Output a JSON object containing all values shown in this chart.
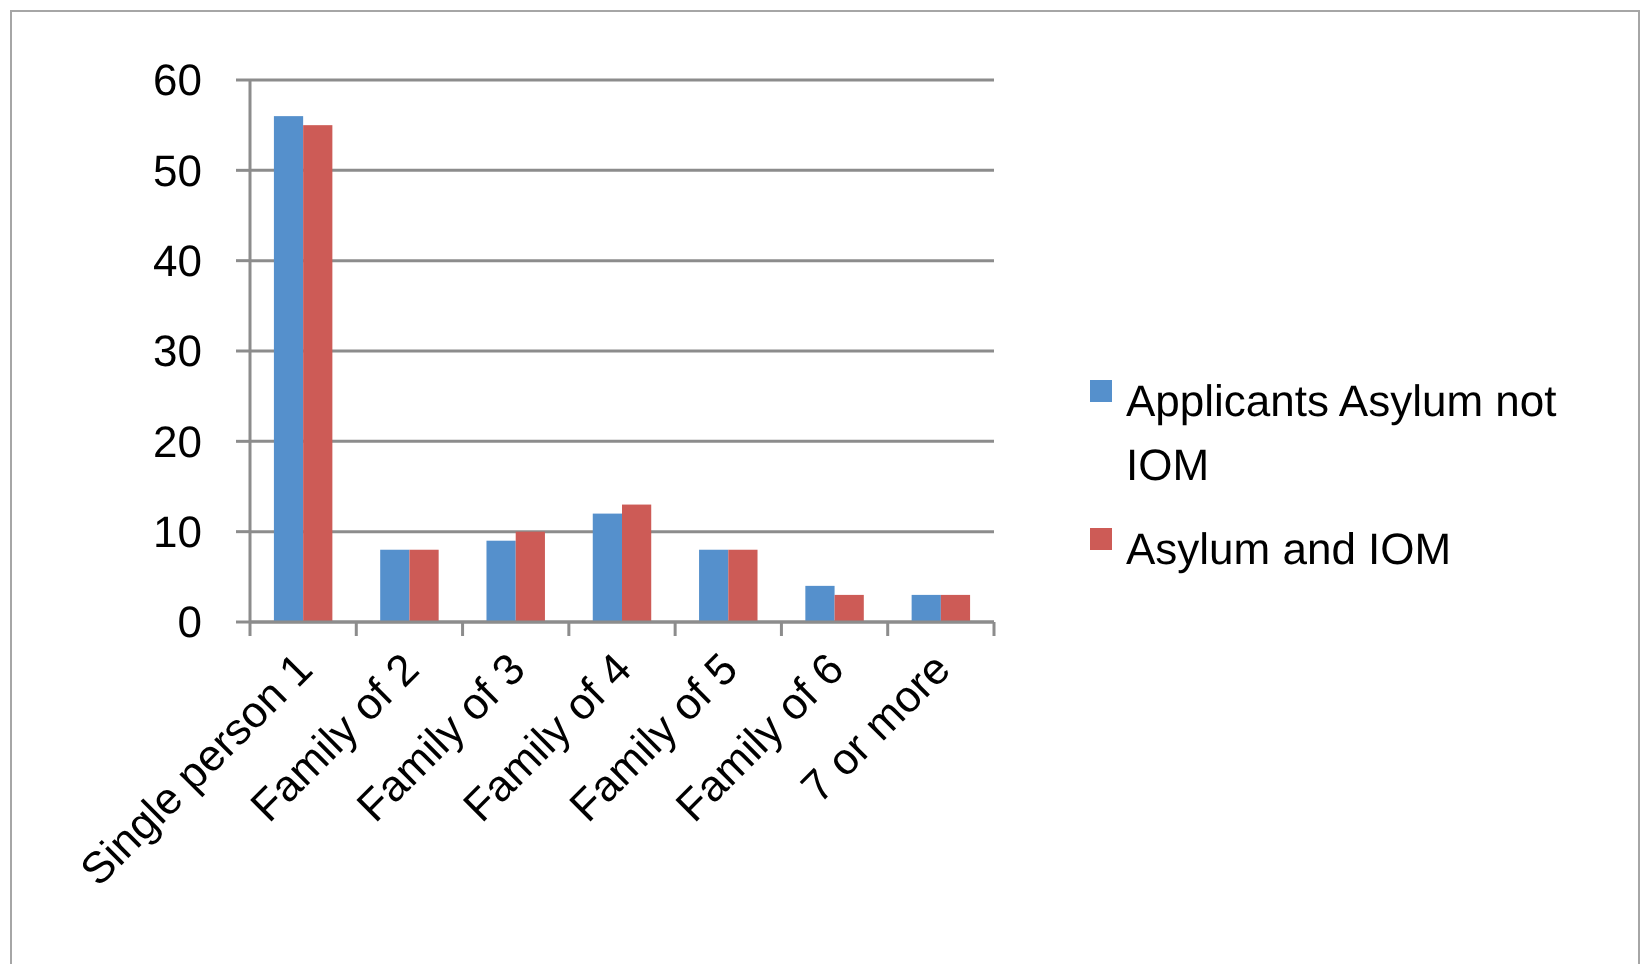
{
  "chart_data": {
    "type": "bar",
    "categories": [
      "Single person 1",
      "Family of 2",
      "Family of 3",
      "Family of 4",
      "Family of 5",
      "Family of 6",
      "7 or more"
    ],
    "series": [
      {
        "name": "Applicants Asylum not IOM",
        "color": "#5590cc",
        "values": [
          56,
          8,
          9,
          12,
          8,
          4,
          3
        ]
      },
      {
        "name": "Asylum and IOM",
        "color": "#cd5b56",
        "values": [
          55,
          8,
          10,
          13,
          8,
          3,
          3
        ]
      }
    ],
    "ylim": [
      0,
      60
    ],
    "yticks": [
      0,
      10,
      20,
      30,
      40,
      50,
      60
    ],
    "grid": "y",
    "legend": "right"
  }
}
